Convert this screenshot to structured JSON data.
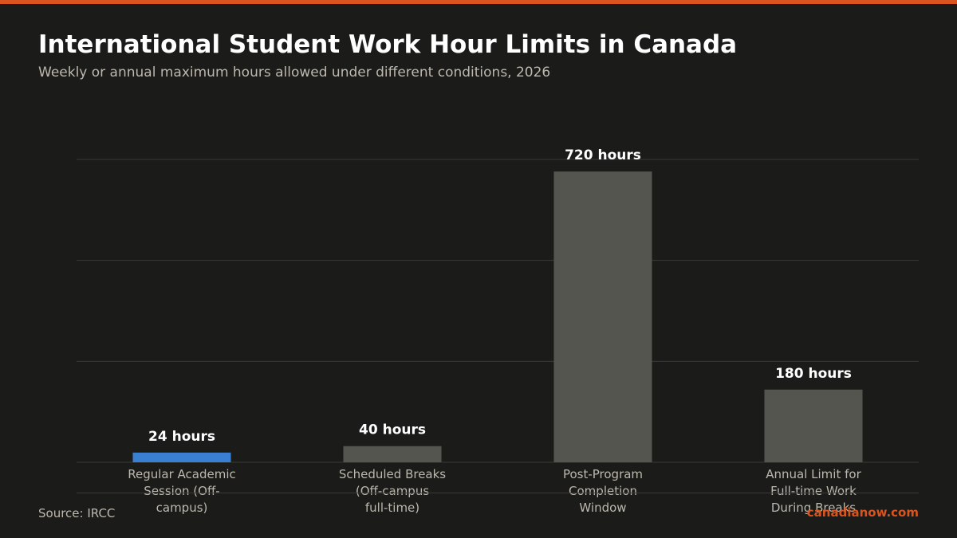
{
  "header": {
    "title": "International Student Work Hour Limits in Canada",
    "subtitle": "Weekly or annual maximum hours allowed under different conditions, 2026"
  },
  "footer": {
    "source": "Source: IRCC",
    "brand": "canadianow.com"
  },
  "colors": {
    "accent": "#d9541e",
    "highlight_bar": "#3a80d2",
    "default_bar": "#55554f",
    "background": "#1b1b1a",
    "gridline": "#3a3a38",
    "muted_text": "#bdb8ad"
  },
  "chart_data": {
    "type": "bar",
    "title": "International Student Work Hour Limits in Canada",
    "subtitle": "Weekly or annual maximum hours allowed under different conditions, 2026",
    "categories": [
      [
        "Regular Academic",
        "Session (Off-",
        "campus)"
      ],
      [
        "Scheduled Breaks",
        "(Off-campus",
        "full-time)"
      ],
      [
        "Post-Program",
        "Completion",
        "Window"
      ],
      [
        "Annual Limit for",
        "Full-time Work",
        "During Breaks"
      ]
    ],
    "values": [
      24,
      40,
      720,
      180
    ],
    "data_labels": [
      "24 hours",
      "40 hours",
      "720 hours",
      "180 hours"
    ],
    "highlighted_index": 0,
    "ylim": [
      0,
      750
    ],
    "gridlines": [
      0,
      250,
      500,
      750
    ],
    "grid": true,
    "legend": "none",
    "xlabel": "",
    "ylabel": ""
  }
}
